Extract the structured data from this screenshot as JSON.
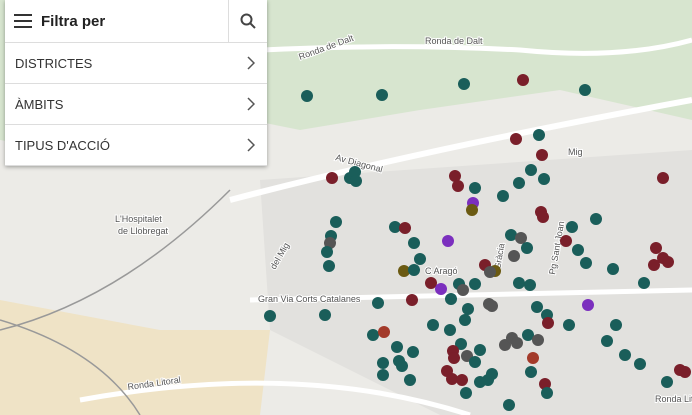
{
  "panel": {
    "title": "Filtra per",
    "filters": [
      "DISTRICTES",
      "ÀMBITS",
      "TIPUS D'ACCIÓ"
    ]
  },
  "map_labels": {
    "ronda_dalt_1": "Ronda de Dalt",
    "ronda_dalt_2": "Ronda de Dalt",
    "diagonal": "Av Diagonal",
    "mig": "Mig",
    "arago": "C Aragó",
    "gran_via": "Gran Via Corts Catalanes",
    "ronda_litoral_1": "Ronda Litoral",
    "ronda_litoral_2": "Ronda Lit",
    "hospitalet_1": "L'Hospitalet",
    "hospitalet_2": "de Llobregat",
    "sant_joan": "Pg Sant Joan",
    "gracia": "Gràcia",
    "mig_2": "del Mig"
  }
}
